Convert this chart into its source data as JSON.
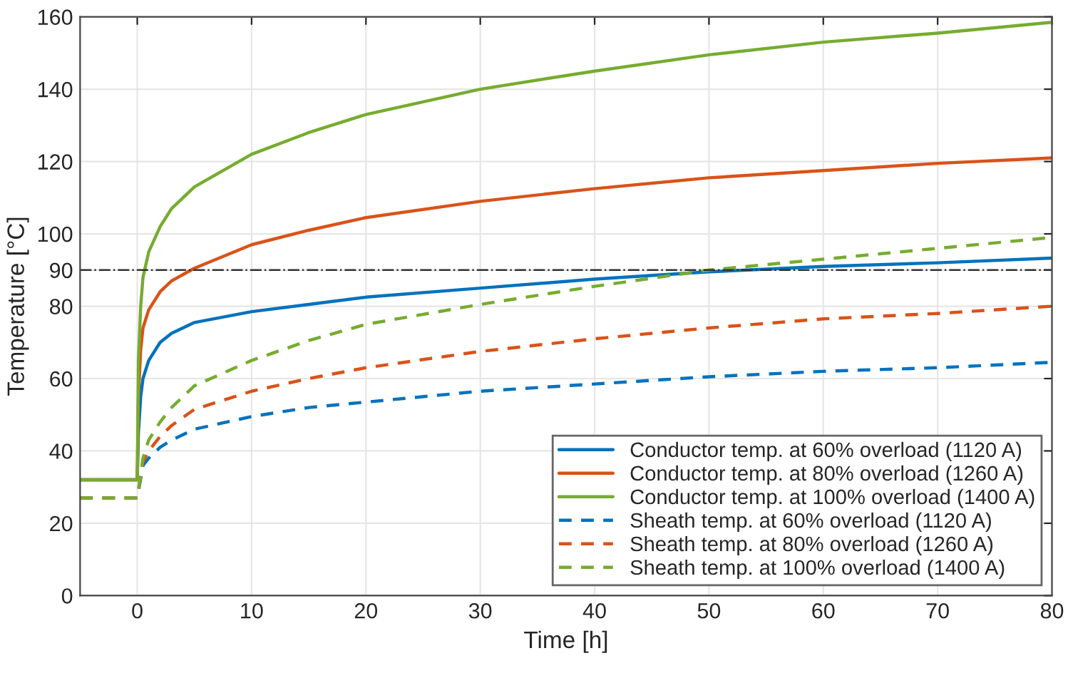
{
  "chart_data": {
    "type": "line",
    "xlabel": "Time [h]",
    "ylabel": "Temperature [°C]",
    "xlim": [
      -5,
      80
    ],
    "xticks": [
      0,
      10,
      20,
      30,
      40,
      50,
      60,
      70,
      80
    ],
    "ylim": [
      0,
      160
    ],
    "yticks": [
      0,
      20,
      40,
      60,
      80,
      90,
      100,
      120,
      140,
      160
    ],
    "grid": true,
    "legend": "bottom right",
    "series": [
      {
        "name": "Conductor temp. at 60% overload (1120 A)",
        "color": "#0072bd",
        "line_style": "solid",
        "x": [
          -5,
          0,
          0.1,
          0.3,
          0.5,
          1,
          2,
          3,
          5,
          10,
          15,
          20,
          30,
          40,
          50,
          60,
          70,
          80
        ],
        "values": [
          32,
          32,
          45,
          55,
          60,
          65,
          70,
          72.5,
          75.5,
          78.5,
          80.5,
          82.5,
          85,
          87.5,
          89.5,
          91,
          92,
          93.3
        ]
      },
      {
        "name": "Conductor temp. at 80% overload (1260 A)",
        "color": "#d95319",
        "line_style": "solid",
        "x": [
          -5,
          0,
          0.1,
          0.3,
          0.5,
          1,
          2,
          3,
          5,
          10,
          15,
          20,
          30,
          40,
          50,
          60,
          70,
          80
        ],
        "values": [
          32,
          32,
          55,
          68,
          74,
          79,
          84,
          87,
          90.5,
          97,
          101,
          104.5,
          109,
          112.5,
          115.5,
          117.5,
          119.5,
          121
        ]
      },
      {
        "name": "Conductor temp. at 100% overload (1400 A)",
        "color": "#77ac30",
        "line_style": "solid",
        "x": [
          -5,
          0,
          0.1,
          0.3,
          0.5,
          1,
          2,
          3,
          5,
          10,
          15,
          20,
          30,
          40,
          50,
          60,
          70,
          80
        ],
        "values": [
          32,
          32,
          65,
          80,
          88,
          95,
          102,
          107,
          113,
          122,
          128,
          133,
          140,
          145,
          149.5,
          153,
          155.5,
          158.5
        ]
      },
      {
        "name": "Sheath temp. at 60% overload (1120 A)",
        "color": "#0072bd",
        "line_style": "dashed",
        "x": [
          -5,
          0,
          0.5,
          1,
          2,
          3,
          5,
          10,
          15,
          20,
          30,
          40,
          50,
          60,
          70,
          80
        ],
        "values": [
          27,
          27,
          36,
          38,
          41,
          43,
          46,
          49.5,
          52,
          53.5,
          56.5,
          58.5,
          60.5,
          62,
          63,
          64.5
        ]
      },
      {
        "name": "Sheath temp. at 80% overload (1260 A)",
        "color": "#d95319",
        "line_style": "dashed",
        "x": [
          -5,
          0,
          0.5,
          1,
          2,
          3,
          5,
          10,
          15,
          20,
          30,
          40,
          50,
          60,
          70,
          80
        ],
        "values": [
          27,
          27,
          37,
          40,
          44,
          47,
          51.5,
          56.5,
          60,
          63,
          67.5,
          71,
          74,
          76.5,
          78,
          80
        ]
      },
      {
        "name": "Sheath temp. at 100% overload (1400 A)",
        "color": "#77ac30",
        "line_style": "dashed",
        "x": [
          -5,
          0,
          0.5,
          1,
          2,
          3,
          5,
          10,
          15,
          20,
          30,
          40,
          50,
          60,
          70,
          80
        ],
        "values": [
          27,
          27,
          38,
          43,
          48,
          52,
          58,
          65,
          70.5,
          75,
          80.5,
          85.5,
          90,
          93,
          96,
          99
        ]
      }
    ],
    "ref_lines": [
      {
        "axis": "y",
        "value": 90,
        "color": "#333333",
        "line_style": "dashdot"
      }
    ]
  }
}
